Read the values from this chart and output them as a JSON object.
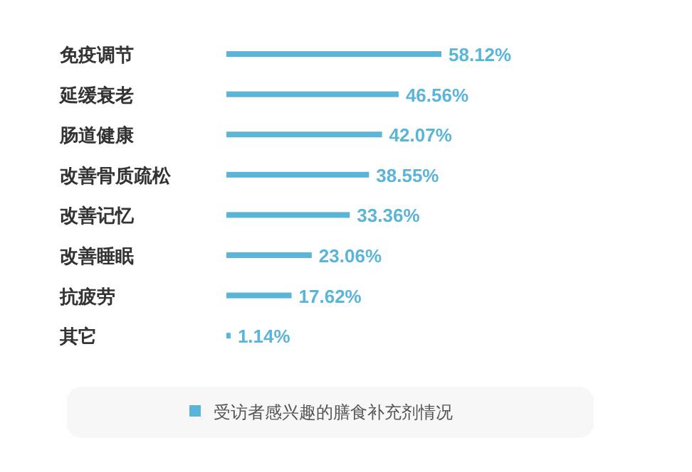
{
  "chart_data": {
    "type": "bar",
    "orientation": "horizontal",
    "categories": [
      "免疫调节",
      "延缓衰老",
      "肠道健康",
      "改善骨质疏松",
      "改善记忆",
      "改善睡眠",
      "抗疲劳",
      "其它"
    ],
    "series": [
      {
        "name": "受访者感兴趣的膳食补充剂情况",
        "color": "#5bb5d9",
        "values": [
          58.12,
          46.56,
          42.07,
          38.55,
          33.36,
          23.06,
          17.62,
          1.14
        ],
        "value_labels": [
          "58.12%",
          "46.56%",
          "42.07%",
          "38.55%",
          "33.36%",
          "23.06%",
          "17.62%",
          "1.14%"
        ]
      }
    ],
    "legend": "bottom"
  }
}
